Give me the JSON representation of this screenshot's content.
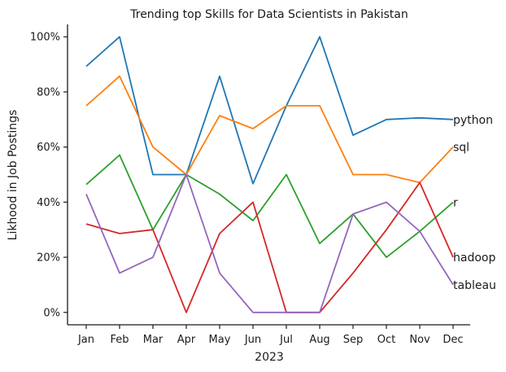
{
  "chart_data": {
    "type": "line",
    "title": "Trending top Skills for Data Scientists in Pakistan",
    "xlabel": "2023",
    "ylabel": "Likhood in Job Postings",
    "categories": [
      "Jan",
      "Feb",
      "Mar",
      "Apr",
      "May",
      "Jun",
      "Jul",
      "Aug",
      "Sep",
      "Oct",
      "Nov",
      "Dec"
    ],
    "ylim": [
      -4.5,
      104.5
    ],
    "yticks": [
      0,
      20,
      40,
      60,
      80,
      100
    ],
    "ytick_labels": [
      "0%",
      "20%",
      "40%",
      "60%",
      "80%",
      "100%"
    ],
    "grid": false,
    "legend": "labels at line ends",
    "series": [
      {
        "name": "python",
        "color": "#1f77b4",
        "values": [
          89.3,
          100,
          50,
          50,
          85.7,
          46.7,
          75,
          100,
          64.3,
          70,
          70.6,
          70
        ]
      },
      {
        "name": "sql",
        "color": "#ff7f0e",
        "values": [
          75,
          85.7,
          60,
          50,
          71.4,
          66.7,
          75,
          75,
          50,
          50,
          47.1,
          60
        ]
      },
      {
        "name": "r",
        "color": "#2ca02c",
        "values": [
          46.4,
          57.1,
          30,
          50,
          42.9,
          33.3,
          50,
          25,
          35.7,
          20,
          29.4,
          40
        ]
      },
      {
        "name": "hadoop",
        "color": "#d62728",
        "values": [
          32.1,
          28.6,
          30,
          0,
          28.6,
          40,
          0,
          0,
          14.3,
          30,
          47.1,
          20
        ]
      },
      {
        "name": "tableau",
        "color": "#9467bd",
        "values": [
          42.9,
          14.3,
          20,
          50,
          14.3,
          0,
          0,
          0,
          35.7,
          40,
          29.4,
          10
        ]
      }
    ]
  }
}
